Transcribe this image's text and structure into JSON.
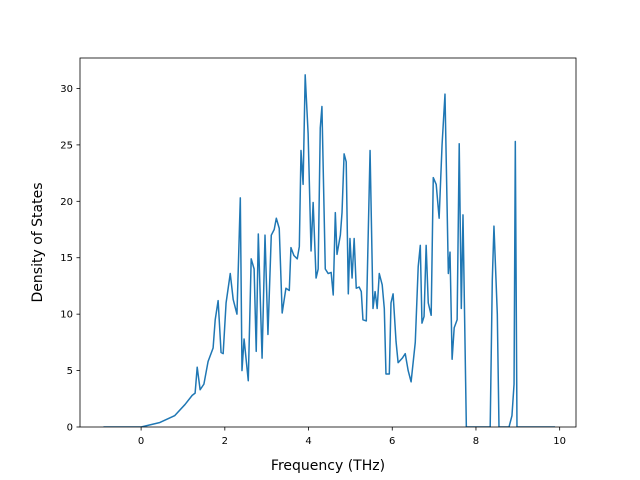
{
  "chart_data": {
    "type": "line",
    "xlabel": "Frequency (THz)",
    "ylabel": "Density of States",
    "color": "#1f77b4",
    "x": [
      -0.9,
      0,
      0.45,
      0.8,
      1.05,
      1.22,
      1.29,
      1.34,
      1.41,
      1.5,
      1.6,
      1.67,
      1.72,
      1.77,
      1.84,
      1.91,
      1.96,
      2.03,
      2.13,
      2.2,
      2.29,
      2.37,
      2.41,
      2.46,
      2.56,
      2.63,
      2.7,
      2.75,
      2.8,
      2.89,
      2.96,
      3.03,
      3.11,
      3.18,
      3.23,
      3.3,
      3.37,
      3.46,
      3.54,
      3.58,
      3.65,
      3.73,
      3.78,
      3.82,
      3.87,
      3.92,
      3.99,
      4.06,
      4.11,
      4.18,
      4.23,
      4.28,
      4.32,
      4.4,
      4.47,
      4.54,
      4.59,
      4.64,
      4.68,
      4.76,
      4.8,
      4.85,
      4.9,
      4.95,
      4.99,
      5.04,
      5.09,
      5.14,
      5.21,
      5.26,
      5.3,
      5.38,
      5.47,
      5.54,
      5.59,
      5.64,
      5.69,
      5.76,
      5.81,
      5.85,
      5.93,
      5.97,
      6.02,
      6.09,
      6.14,
      6.24,
      6.31,
      6.38,
      6.45,
      6.55,
      6.62,
      6.67,
      6.71,
      6.76,
      6.81,
      6.86,
      6.93,
      6.98,
      7.05,
      7.12,
      7.19,
      7.26,
      7.34,
      7.38,
      7.43,
      7.48,
      7.55,
      7.6,
      7.65,
      7.69,
      7.77,
      8.34,
      8.39,
      8.43,
      8.51,
      8.55,
      8.79,
      8.86,
      8.91,
      8.94,
      8.98,
      9.89
    ],
    "values": [
      0,
      0,
      0.4,
      1,
      2,
      2.8,
      3,
      5.3,
      3.3,
      3.8,
      5.8,
      6.5,
      7,
      9.5,
      11.2,
      6.6,
      6.5,
      11,
      13.6,
      11.3,
      10,
      20.3,
      5,
      7.8,
      4.1,
      14.9,
      14,
      6.7,
      17.1,
      6.1,
      17,
      8.2,
      17,
      17.5,
      18.5,
      17.6,
      10.1,
      12.3,
      12.1,
      15.9,
      15.2,
      14.9,
      16,
      24.5,
      21.5,
      31.2,
      26,
      15.6,
      19.9,
      13.2,
      14,
      26.5,
      28.4,
      14,
      13.6,
      13.7,
      11.7,
      19,
      15.3,
      17,
      19,
      24.2,
      23.5,
      11.8,
      16.7,
      13.2,
      16.7,
      12.3,
      12.4,
      12,
      9.5,
      9.4,
      24.5,
      10.5,
      12,
      10.5,
      13.6,
      12.6,
      10.5,
      4.7,
      4.7,
      11,
      11.8,
      7.6,
      5.7,
      6.1,
      6.5,
      5,
      4,
      7.5,
      14.2,
      16.1,
      9.2,
      9.8,
      16.1,
      11,
      9.9,
      22.1,
      21.5,
      18.5,
      25,
      29.5,
      13.6,
      15.5,
      6,
      8.8,
      9.5,
      25.1,
      10.5,
      18.8,
      0,
      0,
      13,
      17.8,
      10,
      0,
      0,
      1,
      3.8,
      25.3,
      0,
      0
    ],
    "xlim": [
      -1.46,
      10.39
    ],
    "ylim": [
      0,
      32.7
    ],
    "xticks": [
      0,
      2,
      4,
      6,
      8,
      10
    ],
    "yticks": [
      0,
      5,
      10,
      15,
      20,
      25,
      30
    ]
  }
}
